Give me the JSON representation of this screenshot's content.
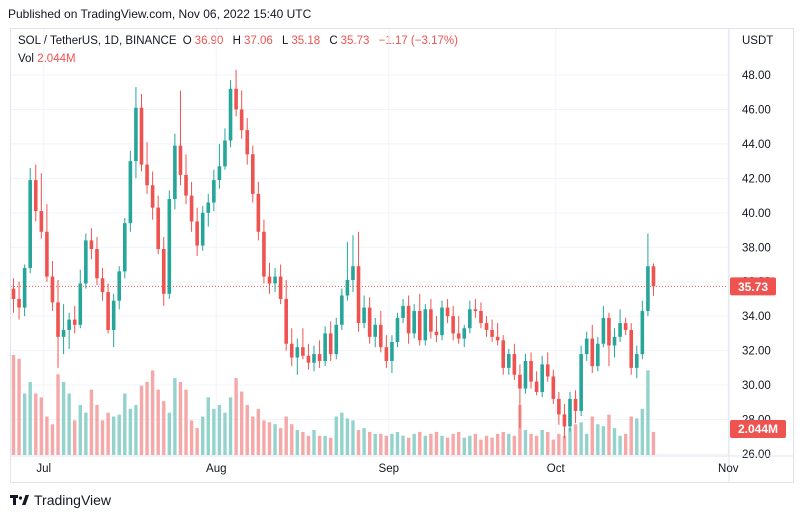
{
  "header": {
    "published": "Published on TradingView.com, Nov 06, 2022 15:40 UTC"
  },
  "legend": {
    "symbol": "SOL / TetherUS, 1D, BINANCE",
    "open_label": "O",
    "open": "36.90",
    "high_label": "H",
    "high": "37.06",
    "low_label": "L",
    "low": "35.18",
    "close_label": "C",
    "close": "35.73",
    "change": "−1.17 (−3.17%)",
    "vol_label": "Vol",
    "vol_value": "2.044M"
  },
  "currency": "USDT",
  "price_tag": "35.73",
  "volume_tag": "2.044M",
  "footer": {
    "brand": "TradingView"
  },
  "colors": {
    "up": "#26a69a",
    "down": "#ef5350",
    "up_volume": "#94d3cd",
    "down_volume": "#f5a8a7",
    "grid": "#f0f3fa"
  },
  "chart_data": {
    "type": "candlestick",
    "title": "SOL / TetherUS, 1D, BINANCE",
    "y_ticks": [
      "48.00",
      "46.00",
      "44.00",
      "42.00",
      "40.00",
      "38.00",
      "36.00",
      "34.00",
      "32.00",
      "30.00",
      "28.00",
      "26.00"
    ],
    "ylim": [
      26,
      49
    ],
    "x_ticks": [
      "Jul",
      "Aug",
      "Sep",
      "Oct",
      "Nov"
    ],
    "x_tick_positions": [
      4,
      35,
      66,
      96,
      127
    ],
    "current_price": 35.73,
    "series": [
      {
        "o": 35.6,
        "h": 36.2,
        "l": 34.2,
        "c": 35.0
      },
      {
        "o": 35.0,
        "h": 36.0,
        "l": 33.8,
        "c": 34.5
      },
      {
        "o": 34.5,
        "h": 37.0,
        "l": 34.0,
        "c": 36.8
      },
      {
        "o": 36.8,
        "h": 42.6,
        "l": 36.5,
        "c": 41.9
      },
      {
        "o": 41.9,
        "h": 42.8,
        "l": 39.5,
        "c": 40.1
      },
      {
        "o": 40.1,
        "h": 42.3,
        "l": 38.5,
        "c": 38.9
      },
      {
        "o": 38.9,
        "h": 40.5,
        "l": 36.0,
        "c": 36.3
      },
      {
        "o": 36.3,
        "h": 37.2,
        "l": 34.3,
        "c": 34.8
      },
      {
        "o": 34.8,
        "h": 36.1,
        "l": 31.0,
        "c": 32.8
      },
      {
        "o": 32.8,
        "h": 34.7,
        "l": 31.8,
        "c": 33.2
      },
      {
        "o": 33.2,
        "h": 34.2,
        "l": 32.1,
        "c": 33.8
      },
      {
        "o": 33.8,
        "h": 34.6,
        "l": 33.0,
        "c": 33.5
      },
      {
        "o": 33.5,
        "h": 36.7,
        "l": 33.3,
        "c": 35.9
      },
      {
        "o": 35.9,
        "h": 38.8,
        "l": 35.6,
        "c": 38.4
      },
      {
        "o": 38.4,
        "h": 39.1,
        "l": 37.3,
        "c": 37.9
      },
      {
        "o": 37.9,
        "h": 38.6,
        "l": 35.8,
        "c": 36.2
      },
      {
        "o": 36.2,
        "h": 36.8,
        "l": 34.9,
        "c": 35.4
      },
      {
        "o": 35.4,
        "h": 35.9,
        "l": 33.0,
        "c": 33.2
      },
      {
        "o": 33.2,
        "h": 35.3,
        "l": 32.2,
        "c": 34.9
      },
      {
        "o": 34.9,
        "h": 36.9,
        "l": 34.4,
        "c": 36.6
      },
      {
        "o": 36.6,
        "h": 39.7,
        "l": 36.2,
        "c": 39.4
      },
      {
        "o": 39.4,
        "h": 43.6,
        "l": 38.9,
        "c": 43.0
      },
      {
        "o": 43.0,
        "h": 47.3,
        "l": 42.0,
        "c": 46.1
      },
      {
        "o": 46.1,
        "h": 46.9,
        "l": 42.4,
        "c": 42.8
      },
      {
        "o": 42.8,
        "h": 44.1,
        "l": 41.1,
        "c": 41.6
      },
      {
        "o": 41.6,
        "h": 42.4,
        "l": 39.6,
        "c": 40.3
      },
      {
        "o": 40.3,
        "h": 41.0,
        "l": 37.6,
        "c": 37.9
      },
      {
        "o": 37.9,
        "h": 38.6,
        "l": 34.6,
        "c": 35.3
      },
      {
        "o": 35.3,
        "h": 41.3,
        "l": 35.0,
        "c": 40.8
      },
      {
        "o": 40.8,
        "h": 44.6,
        "l": 40.2,
        "c": 43.9
      },
      {
        "o": 43.9,
        "h": 47.1,
        "l": 41.6,
        "c": 42.2
      },
      {
        "o": 42.2,
        "h": 43.4,
        "l": 40.5,
        "c": 41.0
      },
      {
        "o": 41.0,
        "h": 41.8,
        "l": 38.9,
        "c": 39.5
      },
      {
        "o": 39.5,
        "h": 40.3,
        "l": 37.5,
        "c": 38.1
      },
      {
        "o": 38.1,
        "h": 40.4,
        "l": 37.8,
        "c": 40.0
      },
      {
        "o": 40.0,
        "h": 41.1,
        "l": 39.2,
        "c": 40.6
      },
      {
        "o": 40.6,
        "h": 42.5,
        "l": 40.1,
        "c": 41.9
      },
      {
        "o": 41.9,
        "h": 44.0,
        "l": 41.4,
        "c": 42.7
      },
      {
        "o": 42.7,
        "h": 44.9,
        "l": 42.5,
        "c": 44.2
      },
      {
        "o": 44.2,
        "h": 47.7,
        "l": 43.8,
        "c": 47.2
      },
      {
        "o": 47.2,
        "h": 48.3,
        "l": 45.6,
        "c": 46.0
      },
      {
        "o": 46.0,
        "h": 47.1,
        "l": 44.3,
        "c": 44.8
      },
      {
        "o": 44.8,
        "h": 45.5,
        "l": 42.8,
        "c": 43.4
      },
      {
        "o": 43.4,
        "h": 43.9,
        "l": 40.6,
        "c": 41.1
      },
      {
        "o": 41.1,
        "h": 41.8,
        "l": 38.4,
        "c": 38.9
      },
      {
        "o": 38.9,
        "h": 39.6,
        "l": 35.9,
        "c": 36.3
      },
      {
        "o": 36.3,
        "h": 37.1,
        "l": 35.3,
        "c": 35.9
      },
      {
        "o": 35.9,
        "h": 36.8,
        "l": 35.4,
        "c": 36.3
      },
      {
        "o": 36.3,
        "h": 37.0,
        "l": 34.7,
        "c": 35.0
      },
      {
        "o": 35.0,
        "h": 36.1,
        "l": 32.0,
        "c": 32.4
      },
      {
        "o": 32.4,
        "h": 33.3,
        "l": 31.1,
        "c": 31.6
      },
      {
        "o": 31.6,
        "h": 32.7,
        "l": 30.6,
        "c": 32.2
      },
      {
        "o": 32.2,
        "h": 33.3,
        "l": 31.5,
        "c": 31.7
      },
      {
        "o": 31.7,
        "h": 32.4,
        "l": 30.9,
        "c": 31.3
      },
      {
        "o": 31.3,
        "h": 32.3,
        "l": 30.8,
        "c": 31.8
      },
      {
        "o": 31.8,
        "h": 32.6,
        "l": 31.0,
        "c": 31.4
      },
      {
        "o": 31.4,
        "h": 33.4,
        "l": 31.1,
        "c": 33.0
      },
      {
        "o": 33.0,
        "h": 33.7,
        "l": 31.4,
        "c": 31.8
      },
      {
        "o": 31.8,
        "h": 33.9,
        "l": 31.5,
        "c": 33.5
      },
      {
        "o": 33.5,
        "h": 35.6,
        "l": 33.2,
        "c": 35.2
      },
      {
        "o": 35.2,
        "h": 38.3,
        "l": 34.9,
        "c": 36.1
      },
      {
        "o": 36.1,
        "h": 38.7,
        "l": 35.4,
        "c": 36.9
      },
      {
        "o": 36.9,
        "h": 38.9,
        "l": 33.1,
        "c": 33.6
      },
      {
        "o": 33.6,
        "h": 35.2,
        "l": 33.3,
        "c": 34.5
      },
      {
        "o": 34.5,
        "h": 35.1,
        "l": 32.4,
        "c": 32.8
      },
      {
        "o": 32.8,
        "h": 33.9,
        "l": 32.2,
        "c": 33.5
      },
      {
        "o": 33.5,
        "h": 34.3,
        "l": 31.9,
        "c": 32.2
      },
      {
        "o": 32.2,
        "h": 32.9,
        "l": 31.0,
        "c": 31.4
      },
      {
        "o": 31.4,
        "h": 32.9,
        "l": 30.7,
        "c": 32.5
      },
      {
        "o": 32.5,
        "h": 34.2,
        "l": 32.2,
        "c": 33.9
      },
      {
        "o": 33.9,
        "h": 35.0,
        "l": 33.6,
        "c": 34.6
      },
      {
        "o": 34.6,
        "h": 35.2,
        "l": 32.4,
        "c": 33.0
      },
      {
        "o": 33.0,
        "h": 34.7,
        "l": 32.7,
        "c": 34.3
      },
      {
        "o": 34.3,
        "h": 35.3,
        "l": 32.3,
        "c": 32.6
      },
      {
        "o": 32.6,
        "h": 34.7,
        "l": 32.3,
        "c": 34.4
      },
      {
        "o": 34.4,
        "h": 35.0,
        "l": 32.7,
        "c": 33.1
      },
      {
        "o": 33.1,
        "h": 34.0,
        "l": 32.5,
        "c": 32.9
      },
      {
        "o": 32.9,
        "h": 34.9,
        "l": 32.6,
        "c": 34.5
      },
      {
        "o": 34.5,
        "h": 35.0,
        "l": 33.6,
        "c": 34.0
      },
      {
        "o": 34.0,
        "h": 34.6,
        "l": 32.6,
        "c": 33.0
      },
      {
        "o": 33.0,
        "h": 34.0,
        "l": 32.4,
        "c": 32.7
      },
      {
        "o": 32.7,
        "h": 33.5,
        "l": 32.2,
        "c": 33.3
      },
      {
        "o": 33.3,
        "h": 34.9,
        "l": 33.0,
        "c": 34.4
      },
      {
        "o": 34.4,
        "h": 35.0,
        "l": 33.9,
        "c": 34.3
      },
      {
        "o": 34.3,
        "h": 34.8,
        "l": 33.3,
        "c": 33.6
      },
      {
        "o": 33.6,
        "h": 34.0,
        "l": 32.8,
        "c": 33.2
      },
      {
        "o": 33.2,
        "h": 33.8,
        "l": 32.5,
        "c": 32.8
      },
      {
        "o": 32.8,
        "h": 33.6,
        "l": 32.3,
        "c": 32.6
      },
      {
        "o": 32.6,
        "h": 32.9,
        "l": 30.6,
        "c": 31.0
      },
      {
        "o": 31.0,
        "h": 32.1,
        "l": 30.6,
        "c": 31.8
      },
      {
        "o": 31.8,
        "h": 32.4,
        "l": 30.3,
        "c": 30.6
      },
      {
        "o": 30.6,
        "h": 31.2,
        "l": 27.5,
        "c": 29.8
      },
      {
        "o": 29.8,
        "h": 31.8,
        "l": 29.5,
        "c": 31.4
      },
      {
        "o": 31.4,
        "h": 31.9,
        "l": 29.8,
        "c": 30.2
      },
      {
        "o": 30.2,
        "h": 30.8,
        "l": 29.4,
        "c": 29.6
      },
      {
        "o": 29.6,
        "h": 31.7,
        "l": 29.3,
        "c": 31.2
      },
      {
        "o": 31.2,
        "h": 31.9,
        "l": 30.2,
        "c": 30.5
      },
      {
        "o": 30.5,
        "h": 30.9,
        "l": 28.9,
        "c": 29.2
      },
      {
        "o": 29.2,
        "h": 29.6,
        "l": 27.7,
        "c": 28.3
      },
      {
        "o": 28.3,
        "h": 28.9,
        "l": 26.9,
        "c": 27.6
      },
      {
        "o": 27.6,
        "h": 29.6,
        "l": 27.3,
        "c": 29.2
      },
      {
        "o": 29.2,
        "h": 29.7,
        "l": 27.8,
        "c": 28.5
      },
      {
        "o": 28.5,
        "h": 32.3,
        "l": 28.2,
        "c": 31.8
      },
      {
        "o": 31.8,
        "h": 33.1,
        "l": 31.4,
        "c": 32.7
      },
      {
        "o": 32.7,
        "h": 33.5,
        "l": 30.7,
        "c": 31.1
      },
      {
        "o": 31.1,
        "h": 32.8,
        "l": 30.8,
        "c": 32.4
      },
      {
        "o": 32.4,
        "h": 34.6,
        "l": 32.2,
        "c": 33.9
      },
      {
        "o": 33.9,
        "h": 34.2,
        "l": 31.1,
        "c": 32.3
      },
      {
        "o": 32.3,
        "h": 33.3,
        "l": 31.6,
        "c": 32.8
      },
      {
        "o": 32.8,
        "h": 34.4,
        "l": 32.5,
        "c": 33.6
      },
      {
        "o": 33.6,
        "h": 33.9,
        "l": 32.9,
        "c": 33.2
      },
      {
        "o": 33.2,
        "h": 33.6,
        "l": 30.6,
        "c": 31.0
      },
      {
        "o": 31.0,
        "h": 32.3,
        "l": 30.4,
        "c": 31.8
      },
      {
        "o": 31.8,
        "h": 34.9,
        "l": 31.5,
        "c": 34.3
      },
      {
        "o": 34.3,
        "h": 38.8,
        "l": 34.0,
        "c": 36.9
      },
      {
        "o": 36.9,
        "h": 37.06,
        "l": 35.18,
        "c": 35.73
      }
    ],
    "volume_series": [
      0.52,
      0.5,
      0.32,
      0.38,
      0.32,
      0.3,
      0.2,
      0.16,
      0.42,
      0.38,
      0.32,
      0.18,
      0.26,
      0.22,
      0.34,
      0.26,
      0.18,
      0.22,
      0.2,
      0.21,
      0.32,
      0.24,
      0.26,
      0.36,
      0.38,
      0.44,
      0.34,
      0.28,
      0.22,
      0.4,
      0.38,
      0.34,
      0.18,
      0.14,
      0.2,
      0.3,
      0.24,
      0.26,
      0.22,
      0.3,
      0.4,
      0.33,
      0.26,
      0.2,
      0.24,
      0.18,
      0.17,
      0.16,
      0.14,
      0.2,
      0.16,
      0.13,
      0.12,
      0.1,
      0.13,
      0.1,
      0.1,
      0.09,
      0.2,
      0.22,
      0.19,
      0.18,
      0.13,
      0.14,
      0.12,
      0.11,
      0.11,
      0.1,
      0.11,
      0.12,
      0.1,
      0.09,
      0.11,
      0.12,
      0.1,
      0.11,
      0.12,
      0.1,
      0.09,
      0.11,
      0.12,
      0.09,
      0.1,
      0.11,
      0.08,
      0.1,
      0.09,
      0.11,
      0.12,
      0.11,
      0.1,
      0.26,
      0.13,
      0.11,
      0.1,
      0.13,
      0.12,
      0.08,
      0.11,
      0.1,
      0.14,
      0.16,
      0.17,
      0.11,
      0.2,
      0.16,
      0.15,
      0.21,
      0.14,
      0.1,
      0.11,
      0.2,
      0.19,
      0.24,
      0.44,
      0.12
    ]
  }
}
